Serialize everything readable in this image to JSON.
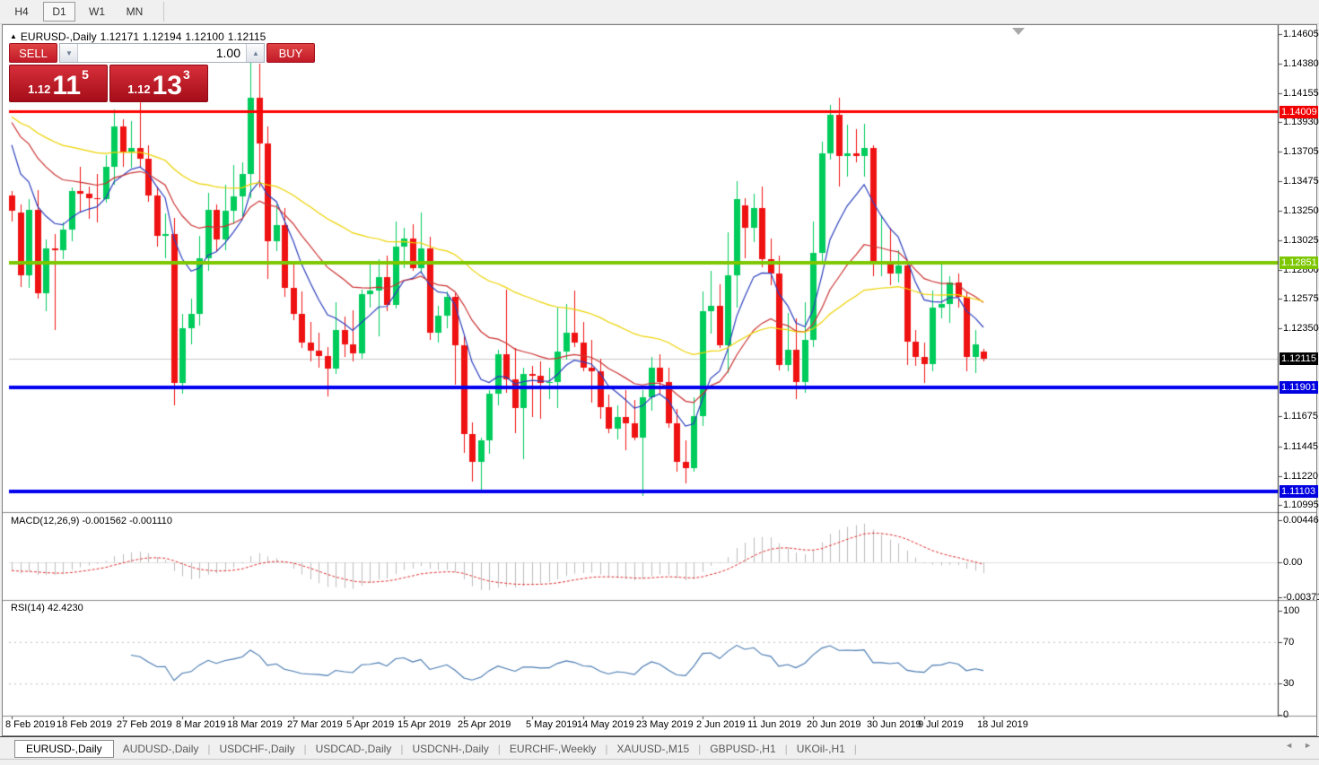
{
  "toolbar": {
    "timeframes": [
      {
        "label": "H4",
        "active": false
      },
      {
        "label": "D1",
        "active": true
      },
      {
        "label": "W1",
        "active": false
      },
      {
        "label": "MN",
        "active": false
      }
    ]
  },
  "chart_header": {
    "marker": "▲",
    "title": "EURUSD-,Daily",
    "open": "1.12171",
    "high": "1.12194",
    "low": "1.12100",
    "close": "1.12115"
  },
  "trade_panel": {
    "sell_label": "SELL",
    "buy_label": "BUY",
    "volume": "1.00",
    "spin_down_icon": "▼",
    "spin_up_icon": "▲",
    "sell_price": {
      "prefix": "1.12",
      "big": "11",
      "sup": "5"
    },
    "buy_price": {
      "prefix": "1.12",
      "big": "13",
      "sup": "3"
    }
  },
  "price_axis": {
    "ticks": [
      "1.14605",
      "1.14380",
      "1.14155",
      "1.13930",
      "1.13705",
      "1.13475",
      "1.13250",
      "1.13025",
      "1.12800",
      "1.12575",
      "1.12350",
      "1.11675",
      "1.11445",
      "1.11220",
      "1.10995"
    ],
    "tags": [
      {
        "text": "1.14009",
        "value": 1.14009,
        "bg": "#F20000"
      },
      {
        "text": "1.12851",
        "value": 1.12851,
        "bg": "#7CC700"
      },
      {
        "text": "1.12115",
        "value": 1.12115,
        "bg": "#000000"
      },
      {
        "text": "1.11901",
        "value": 1.11901,
        "bg": "#0000E0"
      },
      {
        "text": "1.11103",
        "value": 1.11103,
        "bg": "#0000E0"
      }
    ]
  },
  "indicator_panels": {
    "macd": {
      "label": "MACD(12,26,9) -0.001562 -0.001110",
      "scale": [
        "0.004465",
        "0.00",
        "-0.003715"
      ]
    },
    "rsi": {
      "label": "RSI(14) 42.4230",
      "scale": [
        "100",
        "70",
        "30",
        "0"
      ]
    }
  },
  "tabs": {
    "separator": "|",
    "scroll_left_icon": "◄",
    "scroll_right_icon": "►",
    "items": [
      {
        "label": "EURUSD-,Daily",
        "active": true
      },
      {
        "label": "AUDUSD-,Daily",
        "active": false
      },
      {
        "label": "USDCHF-,Daily",
        "active": false
      },
      {
        "label": "USDCAD-,Daily",
        "active": false
      },
      {
        "label": "USDCNH-,Daily",
        "active": false
      },
      {
        "label": "EURCHF-,Weekly",
        "active": false
      },
      {
        "label": "XAUUSD-,M15",
        "active": false
      },
      {
        "label": "GBPUSD-,H1",
        "active": false
      },
      {
        "label": "UKOil-,H1",
        "active": false
      }
    ]
  },
  "chart_data": {
    "type": "candlestick",
    "symbol": "EURUSD-",
    "timeframe": "Daily",
    "current_bar": {
      "open": 1.12171,
      "high": 1.12194,
      "low": 1.121,
      "close": 1.12115
    },
    "y_range": [
      1.1095,
      1.1466
    ],
    "candle_up_color": "#00CC5C",
    "candle_down_color": "#EF1212",
    "x_labels": [
      {
        "text": "8 Feb 2019",
        "bar": 0
      },
      {
        "text": "18 Feb 2019",
        "bar": 6
      },
      {
        "text": "27 Feb 2019",
        "bar": 13
      },
      {
        "text": "8 Mar 2019",
        "bar": 20
      },
      {
        "text": "18 Mar 2019",
        "bar": 26
      },
      {
        "text": "27 Mar 2019",
        "bar": 33
      },
      {
        "text": "5 Apr 2019",
        "bar": 40
      },
      {
        "text": "15 Apr 2019",
        "bar": 46
      },
      {
        "text": "25 Apr 2019",
        "bar": 53
      },
      {
        "text": "5 May 2019",
        "bar": 61
      },
      {
        "text": "14 May 2019",
        "bar": 67
      },
      {
        "text": "23 May 2019",
        "bar": 74
      },
      {
        "text": "2 Jun 2019",
        "bar": 81
      },
      {
        "text": "11 Jun 2019",
        "bar": 87
      },
      {
        "text": "20 Jun 2019",
        "bar": 94
      },
      {
        "text": "30 Jun 2019",
        "bar": 101
      },
      {
        "text": "9 Jul 2019",
        "bar": 107
      },
      {
        "text": "18 Jul 2019",
        "bar": 114
      }
    ],
    "candles_ohlc": [
      [
        1.1337,
        1.134,
        1.1317,
        1.1325
      ],
      [
        1.1324,
        1.133,
        1.1267,
        1.1276
      ],
      [
        1.1276,
        1.1334,
        1.1266,
        1.1326
      ],
      [
        1.1326,
        1.1341,
        1.1258,
        1.1262
      ],
      [
        1.1262,
        1.1303,
        1.1248,
        1.1296
      ],
      [
        1.1296,
        1.1307,
        1.1234,
        1.1295
      ],
      [
        1.1295,
        1.1316,
        1.1288,
        1.1311
      ],
      [
        1.1311,
        1.1343,
        1.1302,
        1.134
      ],
      [
        1.134,
        1.1359,
        1.1324,
        1.1338
      ],
      [
        1.1338,
        1.1344,
        1.1319,
        1.1335
      ],
      [
        1.1335,
        1.1353,
        1.1316,
        1.1334
      ],
      [
        1.1334,
        1.1368,
        1.1331,
        1.1359
      ],
      [
        1.1359,
        1.1403,
        1.1345,
        1.139
      ],
      [
        1.139,
        1.1395,
        1.1359,
        1.137
      ],
      [
        1.137,
        1.1394,
        1.1358,
        1.1373
      ],
      [
        1.1373,
        1.1408,
        1.1358,
        1.1365
      ],
      [
        1.1365,
        1.1375,
        1.1332,
        1.1337
      ],
      [
        1.1337,
        1.1344,
        1.1298,
        1.1306
      ],
      [
        1.1306,
        1.1323,
        1.1289,
        1.1307
      ],
      [
        1.1307,
        1.132,
        1.1176,
        1.1193
      ],
      [
        1.1193,
        1.1246,
        1.1185,
        1.1235
      ],
      [
        1.1235,
        1.1258,
        1.1223,
        1.1246
      ],
      [
        1.1246,
        1.1306,
        1.1237,
        1.1289
      ],
      [
        1.1289,
        1.1339,
        1.1279,
        1.1326
      ],
      [
        1.1326,
        1.133,
        1.1294,
        1.1303
      ],
      [
        1.1303,
        1.1345,
        1.1295,
        1.1325
      ],
      [
        1.1325,
        1.136,
        1.1315,
        1.1336
      ],
      [
        1.1336,
        1.1362,
        1.132,
        1.1353
      ],
      [
        1.1353,
        1.1448,
        1.1335,
        1.1412
      ],
      [
        1.1412,
        1.1438,
        1.1343,
        1.1377
      ],
      [
        1.1377,
        1.139,
        1.1273,
        1.1302
      ],
      [
        1.1302,
        1.133,
        1.1294,
        1.1314
      ],
      [
        1.1314,
        1.1327,
        1.1259,
        1.1266
      ],
      [
        1.1266,
        1.1287,
        1.1241,
        1.1246
      ],
      [
        1.1246,
        1.1263,
        1.122,
        1.1224
      ],
      [
        1.1224,
        1.124,
        1.121,
        1.1218
      ],
      [
        1.1218,
        1.1232,
        1.1205,
        1.1214
      ],
      [
        1.1214,
        1.1221,
        1.1183,
        1.1204
      ],
      [
        1.1204,
        1.1255,
        1.12,
        1.1234
      ],
      [
        1.1234,
        1.1244,
        1.1213,
        1.1223
      ],
      [
        1.1223,
        1.1249,
        1.121,
        1.1216
      ],
      [
        1.1216,
        1.1265,
        1.1212,
        1.1261
      ],
      [
        1.1261,
        1.1285,
        1.1251,
        1.1264
      ],
      [
        1.1264,
        1.1288,
        1.1229,
        1.1274
      ],
      [
        1.1274,
        1.1291,
        1.1248,
        1.1253
      ],
      [
        1.1253,
        1.1317,
        1.125,
        1.1298
      ],
      [
        1.1298,
        1.1312,
        1.1281,
        1.1304
      ],
      [
        1.1304,
        1.1315,
        1.1279,
        1.1281
      ],
      [
        1.1281,
        1.1324,
        1.1277,
        1.1296
      ],
      [
        1.1296,
        1.1305,
        1.1226,
        1.1232
      ],
      [
        1.1232,
        1.1252,
        1.1224,
        1.1245
      ],
      [
        1.1245,
        1.1263,
        1.1235,
        1.1259
      ],
      [
        1.1259,
        1.1262,
        1.1192,
        1.1222
      ],
      [
        1.1222,
        1.123,
        1.114,
        1.1154
      ],
      [
        1.1154,
        1.1163,
        1.1118,
        1.1133
      ],
      [
        1.1133,
        1.1151,
        1.1111,
        1.1149
      ],
      [
        1.1149,
        1.1188,
        1.1139,
        1.1185
      ],
      [
        1.1185,
        1.1219,
        1.1176,
        1.1215
      ],
      [
        1.1215,
        1.1265,
        1.1186,
        1.1196
      ],
      [
        1.1196,
        1.122,
        1.1155,
        1.1174
      ],
      [
        1.1174,
        1.1205,
        1.1135,
        1.12
      ],
      [
        1.12,
        1.1206,
        1.1167,
        1.1199
      ],
      [
        1.1199,
        1.121,
        1.1166,
        1.1193
      ],
      [
        1.1193,
        1.1205,
        1.1181,
        1.1194
      ],
      [
        1.1194,
        1.1251,
        1.1174,
        1.1217
      ],
      [
        1.1217,
        1.1254,
        1.1211,
        1.1232
      ],
      [
        1.1232,
        1.1264,
        1.1221,
        1.1224
      ],
      [
        1.1224,
        1.124,
        1.1202,
        1.1205
      ],
      [
        1.1205,
        1.1226,
        1.1178,
        1.1202
      ],
      [
        1.1202,
        1.1212,
        1.1166,
        1.1175
      ],
      [
        1.1175,
        1.1184,
        1.1155,
        1.1158
      ],
      [
        1.1158,
        1.1176,
        1.115,
        1.1167
      ],
      [
        1.1167,
        1.1188,
        1.1142,
        1.1162
      ],
      [
        1.1162,
        1.118,
        1.1149,
        1.1151
      ],
      [
        1.1151,
        1.1188,
        1.1107,
        1.1182
      ],
      [
        1.1182,
        1.1213,
        1.1172,
        1.1205
      ],
      [
        1.1205,
        1.1215,
        1.1184,
        1.1194
      ],
      [
        1.1194,
        1.1205,
        1.1159,
        1.1162
      ],
      [
        1.1162,
        1.1173,
        1.1125,
        1.1133
      ],
      [
        1.1133,
        1.1149,
        1.1116,
        1.1128
      ],
      [
        1.1128,
        1.1182,
        1.1125,
        1.1168
      ],
      [
        1.1168,
        1.1263,
        1.116,
        1.1248
      ],
      [
        1.1248,
        1.1279,
        1.1231,
        1.1252
      ],
      [
        1.1252,
        1.1269,
        1.122,
        1.1222
      ],
      [
        1.1222,
        1.1309,
        1.1201,
        1.1276
      ],
      [
        1.1276,
        1.1348,
        1.1251,
        1.1334
      ],
      [
        1.1329,
        1.1335,
        1.1289,
        1.1312
      ],
      [
        1.1312,
        1.1338,
        1.1301,
        1.1327
      ],
      [
        1.1327,
        1.1344,
        1.1282,
        1.1288
      ],
      [
        1.1288,
        1.1304,
        1.1268,
        1.1277
      ],
      [
        1.1277,
        1.1291,
        1.1203,
        1.1207
      ],
      [
        1.1207,
        1.1247,
        1.1202,
        1.1219
      ],
      [
        1.1219,
        1.1243,
        1.1181,
        1.1194
      ],
      [
        1.1194,
        1.1255,
        1.1186,
        1.1226
      ],
      [
        1.1226,
        1.1317,
        1.1221,
        1.1293
      ],
      [
        1.1293,
        1.1378,
        1.1287,
        1.1369
      ],
      [
        1.1369,
        1.1406,
        1.1364,
        1.1399
      ],
      [
        1.1399,
        1.1412,
        1.1344,
        1.1367
      ],
      [
        1.1367,
        1.1391,
        1.1351,
        1.1369
      ],
      [
        1.1369,
        1.1388,
        1.1362,
        1.1367
      ],
      [
        1.1367,
        1.1392,
        1.1351,
        1.1373
      ],
      [
        1.1373,
        1.1375,
        1.1275,
        1.1285
      ],
      [
        1.1285,
        1.1322,
        1.1275,
        1.1285
      ],
      [
        1.1285,
        1.1312,
        1.1268,
        1.1277
      ],
      [
        1.1277,
        1.1295,
        1.127,
        1.1283
      ],
      [
        1.1283,
        1.1287,
        1.1207,
        1.1225
      ],
      [
        1.1225,
        1.1234,
        1.1206,
        1.1213
      ],
      [
        1.1213,
        1.1224,
        1.1193,
        1.1208
      ],
      [
        1.1208,
        1.1264,
        1.1202,
        1.1251
      ],
      [
        1.1251,
        1.1286,
        1.1243,
        1.1254
      ],
      [
        1.1254,
        1.1275,
        1.1239,
        1.127
      ],
      [
        1.127,
        1.1277,
        1.1251,
        1.1259
      ],
      [
        1.1259,
        1.1263,
        1.1202,
        1.1213
      ],
      [
        1.1213,
        1.1234,
        1.1201,
        1.1223
      ],
      [
        1.12171,
        1.12194,
        1.121,
        1.12115
      ]
    ],
    "hlines": [
      {
        "value": 1.14009,
        "color": "#FF0000",
        "width": 3
      },
      {
        "value": 1.12851,
        "color": "#7CC700",
        "width": 4
      },
      {
        "value": 1.11901,
        "color": "#0000F0",
        "width": 4
      },
      {
        "value": 1.11103,
        "color": "#0000F0",
        "width": 4
      }
    ],
    "current_price_line": {
      "value": 1.12115,
      "color": "#C9C9C9"
    },
    "moving_averages": [
      {
        "name": "fast",
        "period": 8,
        "method": "ema",
        "color": "#2C3FBE",
        "seed": 1.139
      },
      {
        "name": "medium",
        "period": 20,
        "method": "ema",
        "color": "#CC3333",
        "seed": 1.14
      },
      {
        "name": "slow",
        "period": 50,
        "method": "ema",
        "color": "#EDD300",
        "seed": 1.14
      }
    ],
    "macd": {
      "fast": 12,
      "slow": 26,
      "signal": 9,
      "current": -0.001562,
      "current_signal": -0.00111,
      "scale": [
        0.004465,
        0,
        -0.003715
      ],
      "histogram_color": "#BDBDBD",
      "signal_color": "#E03030"
    },
    "rsi": {
      "period": 14,
      "current": 42.423,
      "levels": [
        70,
        30
      ],
      "scale": [
        100,
        70,
        30,
        0
      ],
      "line_color": "#4678B0",
      "level_color": "#BFBFBF"
    }
  }
}
